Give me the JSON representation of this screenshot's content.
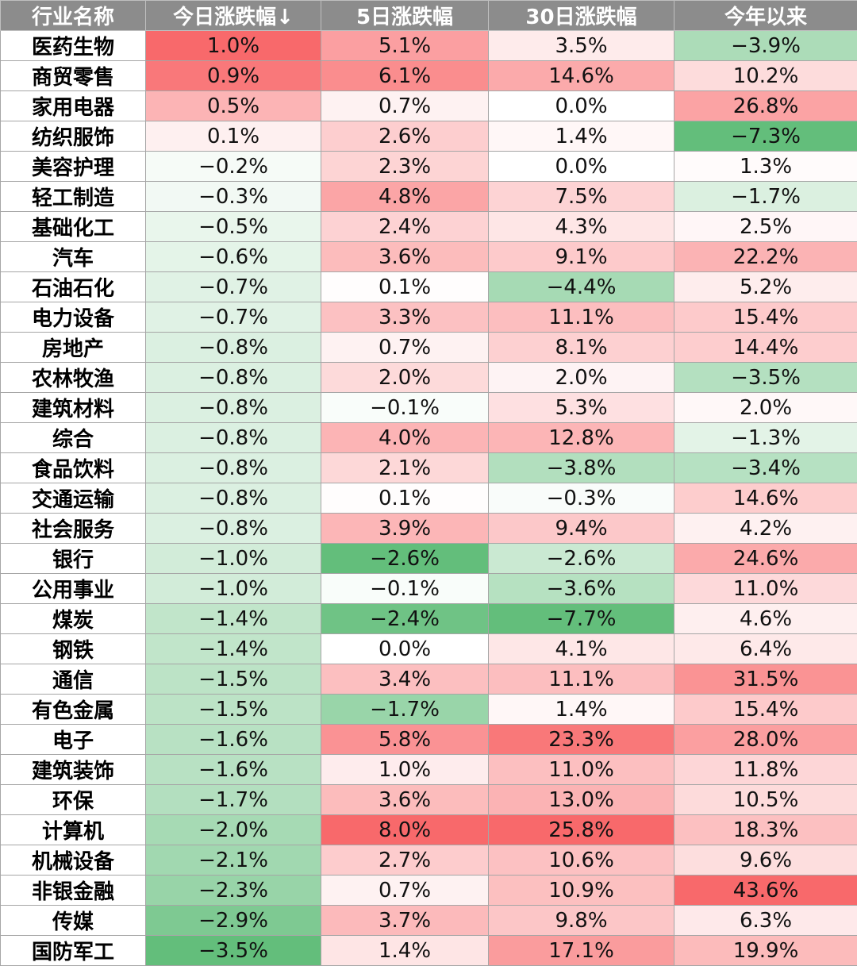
{
  "chart_data": {
    "type": "table",
    "columns": [
      "行业名称",
      "今日涨跌幅↓",
      "5日涨跌幅",
      "30日涨跌幅",
      "今年以来"
    ],
    "rows": [
      {
        "name": "医药生物",
        "values": [
          1.0,
          5.1,
          3.5,
          -3.9
        ]
      },
      {
        "name": "商贸零售",
        "values": [
          0.9,
          6.1,
          14.6,
          10.2
        ]
      },
      {
        "name": "家用电器",
        "values": [
          0.5,
          0.7,
          0.0,
          26.8
        ]
      },
      {
        "name": "纺织服饰",
        "values": [
          0.1,
          2.6,
          1.4,
          -7.3
        ]
      },
      {
        "name": "美容护理",
        "values": [
          -0.2,
          2.3,
          0.0,
          1.3
        ]
      },
      {
        "name": "轻工制造",
        "values": [
          -0.3,
          4.8,
          7.5,
          -1.7
        ]
      },
      {
        "name": "基础化工",
        "values": [
          -0.5,
          2.4,
          4.3,
          2.5
        ]
      },
      {
        "name": "汽车",
        "values": [
          -0.6,
          3.6,
          9.1,
          22.2
        ]
      },
      {
        "name": "石油石化",
        "values": [
          -0.7,
          0.1,
          -4.4,
          5.2
        ]
      },
      {
        "name": "电力设备",
        "values": [
          -0.7,
          3.3,
          11.1,
          15.4
        ]
      },
      {
        "name": "房地产",
        "values": [
          -0.8,
          0.7,
          8.1,
          14.4
        ]
      },
      {
        "name": "农林牧渔",
        "values": [
          -0.8,
          2.0,
          2.0,
          -3.5
        ]
      },
      {
        "name": "建筑材料",
        "values": [
          -0.8,
          -0.1,
          5.3,
          2.0
        ]
      },
      {
        "name": "综合",
        "values": [
          -0.8,
          4.0,
          12.8,
          -1.3
        ]
      },
      {
        "name": "食品饮料",
        "values": [
          -0.8,
          2.1,
          -3.8,
          -3.4
        ]
      },
      {
        "name": "交通运输",
        "values": [
          -0.8,
          0.1,
          -0.3,
          14.6
        ]
      },
      {
        "name": "社会服务",
        "values": [
          -0.8,
          3.9,
          9.4,
          4.2
        ]
      },
      {
        "name": "银行",
        "values": [
          -1.0,
          -2.6,
          -2.6,
          24.6
        ]
      },
      {
        "name": "公用事业",
        "values": [
          -1.0,
          -0.1,
          -3.6,
          11.0
        ]
      },
      {
        "name": "煤炭",
        "values": [
          -1.4,
          -2.4,
          -7.7,
          4.6
        ]
      },
      {
        "name": "钢铁",
        "values": [
          -1.4,
          0.0,
          4.1,
          6.4
        ]
      },
      {
        "name": "通信",
        "values": [
          -1.5,
          3.4,
          11.1,
          31.5
        ]
      },
      {
        "name": "有色金属",
        "values": [
          -1.5,
          -1.7,
          1.4,
          15.4
        ]
      },
      {
        "name": "电子",
        "values": [
          -1.6,
          5.8,
          23.3,
          28.0
        ]
      },
      {
        "name": "建筑装饰",
        "values": [
          -1.6,
          1.0,
          11.0,
          11.8
        ]
      },
      {
        "name": "环保",
        "values": [
          -1.7,
          3.6,
          13.0,
          10.5
        ]
      },
      {
        "name": "计算机",
        "values": [
          -2.0,
          8.0,
          25.8,
          18.3
        ]
      },
      {
        "name": "机械设备",
        "values": [
          -2.1,
          2.7,
          10.6,
          9.6
        ]
      },
      {
        "name": "非银金融",
        "values": [
          -2.3,
          0.7,
          10.9,
          43.6
        ]
      },
      {
        "name": "传媒",
        "values": [
          -2.9,
          3.7,
          9.8,
          6.3
        ]
      },
      {
        "name": "国防军工",
        "values": [
          -3.5,
          1.4,
          17.1,
          19.9
        ]
      }
    ],
    "colors": {
      "positive_max": "#f8696b",
      "neutral": "#ffffff",
      "negative_max": "#63be7b"
    }
  }
}
